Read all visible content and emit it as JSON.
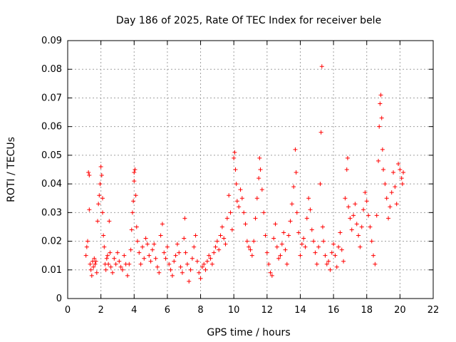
{
  "chart_data": {
    "type": "scatter",
    "title": "Day 186 of 2025, Rate Of TEC Index for receiver bele",
    "xlabel": "GPS time / hours",
    "ylabel": "ROTI / TECUs",
    "xlim": [
      0,
      22
    ],
    "ylim": [
      0,
      0.09
    ],
    "xticks": [
      "0",
      "2",
      "4",
      "6",
      "8",
      "10",
      "12",
      "14",
      "16",
      "18",
      "20",
      "22"
    ],
    "yticks": [
      "0",
      "0.01",
      "0.02",
      "0.03",
      "0.04",
      "0.05",
      "0.06",
      "0.07",
      "0.08",
      "0.09"
    ],
    "grid": true,
    "marker": "plus",
    "color": "#ff0000",
    "series": [
      {
        "points": [
          [
            1.1,
            0.015
          ],
          [
            1.15,
            0.018
          ],
          [
            1.2,
            0.02
          ],
          [
            1.25,
            0.044
          ],
          [
            1.3,
            0.043
          ],
          [
            1.3,
            0.031
          ],
          [
            1.35,
            0.012
          ],
          [
            1.4,
            0.01
          ],
          [
            1.45,
            0.008
          ],
          [
            1.5,
            0.013
          ],
          [
            1.55,
            0.011
          ],
          [
            1.6,
            0.014
          ],
          [
            1.65,
            0.012
          ],
          [
            1.7,
            0.013
          ],
          [
            1.75,
            0.009
          ],
          [
            1.8,
            0.027
          ],
          [
            1.85,
            0.033
          ],
          [
            1.9,
            0.036
          ],
          [
            1.95,
            0.04
          ],
          [
            2.0,
            0.046
          ],
          [
            2.05,
            0.043
          ],
          [
            2.1,
            0.035
          ],
          [
            2.1,
            0.03
          ],
          [
            2.15,
            0.022
          ],
          [
            2.2,
            0.018
          ],
          [
            2.25,
            0.012
          ],
          [
            2.3,
            0.01
          ],
          [
            2.35,
            0.014
          ],
          [
            2.4,
            0.015
          ],
          [
            2.45,
            0.012
          ],
          [
            2.5,
            0.027
          ],
          [
            2.55,
            0.016
          ],
          [
            2.6,
            0.011
          ],
          [
            2.7,
            0.009
          ],
          [
            2.8,
            0.014
          ],
          [
            2.9,
            0.012
          ],
          [
            3.0,
            0.016
          ],
          [
            3.1,
            0.013
          ],
          [
            3.2,
            0.011
          ],
          [
            3.3,
            0.01
          ],
          [
            3.4,
            0.015
          ],
          [
            3.5,
            0.012
          ],
          [
            3.6,
            0.008
          ],
          [
            3.7,
            0.012
          ],
          [
            3.8,
            0.017
          ],
          [
            3.85,
            0.024
          ],
          [
            3.9,
            0.03
          ],
          [
            3.95,
            0.034
          ],
          [
            4.0,
            0.041
          ],
          [
            4.0,
            0.044
          ],
          [
            4.05,
            0.045
          ],
          [
            4.1,
            0.036
          ],
          [
            4.15,
            0.025
          ],
          [
            4.2,
            0.02
          ],
          [
            4.3,
            0.016
          ],
          [
            4.4,
            0.012
          ],
          [
            4.5,
            0.018
          ],
          [
            4.6,
            0.014
          ],
          [
            4.7,
            0.021
          ],
          [
            4.8,
            0.019
          ],
          [
            4.9,
            0.015
          ],
          [
            5.0,
            0.013
          ],
          [
            5.1,
            0.017
          ],
          [
            5.2,
            0.019
          ],
          [
            5.3,
            0.014
          ],
          [
            5.4,
            0.011
          ],
          [
            5.5,
            0.009
          ],
          [
            5.6,
            0.022
          ],
          [
            5.7,
            0.026
          ],
          [
            5.8,
            0.016
          ],
          [
            5.9,
            0.014
          ],
          [
            6.0,
            0.018
          ],
          [
            6.1,
            0.012
          ],
          [
            6.2,
            0.01
          ],
          [
            6.3,
            0.008
          ],
          [
            6.4,
            0.013
          ],
          [
            6.5,
            0.015
          ],
          [
            6.6,
            0.019
          ],
          [
            6.7,
            0.016
          ],
          [
            6.8,
            0.011
          ],
          [
            6.9,
            0.009
          ],
          [
            7.0,
            0.021
          ],
          [
            7.05,
            0.028
          ],
          [
            7.1,
            0.016
          ],
          [
            7.2,
            0.012
          ],
          [
            7.3,
            0.006
          ],
          [
            7.4,
            0.01
          ],
          [
            7.5,
            0.014
          ],
          [
            7.6,
            0.018
          ],
          [
            7.7,
            0.022
          ],
          [
            7.8,
            0.013
          ],
          [
            7.9,
            0.009
          ],
          [
            8.0,
            0.007
          ],
          [
            8.1,
            0.011
          ],
          [
            8.2,
            0.012
          ],
          [
            8.3,
            0.01
          ],
          [
            8.4,
            0.013
          ],
          [
            8.5,
            0.015
          ],
          [
            8.6,
            0.014
          ],
          [
            8.7,
            0.012
          ],
          [
            8.8,
            0.016
          ],
          [
            8.9,
            0.018
          ],
          [
            9.0,
            0.02
          ],
          [
            9.1,
            0.017
          ],
          [
            9.2,
            0.022
          ],
          [
            9.3,
            0.025
          ],
          [
            9.4,
            0.021
          ],
          [
            9.5,
            0.019
          ],
          [
            9.6,
            0.028
          ],
          [
            9.7,
            0.036
          ],
          [
            9.8,
            0.03
          ],
          [
            9.9,
            0.024
          ],
          [
            10.0,
            0.049
          ],
          [
            10.05,
            0.051
          ],
          [
            10.1,
            0.045
          ],
          [
            10.15,
            0.04
          ],
          [
            10.2,
            0.034
          ],
          [
            10.3,
            0.032
          ],
          [
            10.4,
            0.038
          ],
          [
            10.5,
            0.035
          ],
          [
            10.6,
            0.03
          ],
          [
            10.7,
            0.026
          ],
          [
            10.8,
            0.02
          ],
          [
            10.9,
            0.018
          ],
          [
            11.0,
            0.017
          ],
          [
            11.1,
            0.015
          ],
          [
            11.2,
            0.02
          ],
          [
            11.3,
            0.028
          ],
          [
            11.4,
            0.035
          ],
          [
            11.5,
            0.042
          ],
          [
            11.55,
            0.049
          ],
          [
            11.6,
            0.045
          ],
          [
            11.7,
            0.038
          ],
          [
            11.8,
            0.03
          ],
          [
            11.9,
            0.022
          ],
          [
            12.0,
            0.016
          ],
          [
            12.1,
            0.012
          ],
          [
            12.2,
            0.009
          ],
          [
            12.3,
            0.008
          ],
          [
            12.4,
            0.021
          ],
          [
            12.5,
            0.026
          ],
          [
            12.6,
            0.018
          ],
          [
            12.7,
            0.014
          ],
          [
            12.8,
            0.015
          ],
          [
            12.9,
            0.019
          ],
          [
            13.0,
            0.023
          ],
          [
            13.1,
            0.017
          ],
          [
            13.2,
            0.012
          ],
          [
            13.3,
            0.022
          ],
          [
            13.4,
            0.027
          ],
          [
            13.5,
            0.033
          ],
          [
            13.6,
            0.039
          ],
          [
            13.7,
            0.052
          ],
          [
            13.75,
            0.044
          ],
          [
            13.8,
            0.03
          ],
          [
            13.9,
            0.023
          ],
          [
            14.0,
            0.015
          ],
          [
            14.1,
            0.019
          ],
          [
            14.2,
            0.021
          ],
          [
            14.3,
            0.018
          ],
          [
            14.4,
            0.028
          ],
          [
            14.5,
            0.035
          ],
          [
            14.6,
            0.031
          ],
          [
            14.7,
            0.024
          ],
          [
            14.8,
            0.02
          ],
          [
            14.9,
            0.016
          ],
          [
            15.0,
            0.012
          ],
          [
            15.1,
            0.018
          ],
          [
            15.2,
            0.04
          ],
          [
            15.25,
            0.058
          ],
          [
            15.3,
            0.081
          ],
          [
            15.35,
            0.025
          ],
          [
            15.4,
            0.02
          ],
          [
            15.5,
            0.015
          ],
          [
            15.6,
            0.012
          ],
          [
            15.7,
            0.013
          ],
          [
            15.8,
            0.01
          ],
          [
            15.9,
            0.016
          ],
          [
            16.0,
            0.019
          ],
          [
            16.1,
            0.015
          ],
          [
            16.2,
            0.011
          ],
          [
            16.3,
            0.018
          ],
          [
            16.4,
            0.023
          ],
          [
            16.5,
            0.017
          ],
          [
            16.6,
            0.013
          ],
          [
            16.7,
            0.035
          ],
          [
            16.8,
            0.045
          ],
          [
            16.85,
            0.049
          ],
          [
            16.9,
            0.032
          ],
          [
            17.0,
            0.028
          ],
          [
            17.1,
            0.024
          ],
          [
            17.2,
            0.029
          ],
          [
            17.3,
            0.033
          ],
          [
            17.4,
            0.026
          ],
          [
            17.5,
            0.022
          ],
          [
            17.6,
            0.018
          ],
          [
            17.7,
            0.025
          ],
          [
            17.8,
            0.031
          ],
          [
            17.9,
            0.037
          ],
          [
            18.0,
            0.034
          ],
          [
            18.1,
            0.029
          ],
          [
            18.2,
            0.025
          ],
          [
            18.3,
            0.02
          ],
          [
            18.4,
            0.015
          ],
          [
            18.5,
            0.012
          ],
          [
            18.6,
            0.029
          ],
          [
            18.7,
            0.048
          ],
          [
            18.75,
            0.06
          ],
          [
            18.8,
            0.068
          ],
          [
            18.85,
            0.071
          ],
          [
            18.9,
            0.063
          ],
          [
            18.95,
            0.052
          ],
          [
            19.0,
            0.045
          ],
          [
            19.1,
            0.04
          ],
          [
            19.2,
            0.035
          ],
          [
            19.3,
            0.028
          ],
          [
            19.4,
            0.032
          ],
          [
            19.5,
            0.037
          ],
          [
            19.6,
            0.044
          ],
          [
            19.7,
            0.039
          ],
          [
            19.8,
            0.033
          ],
          [
            19.9,
            0.047
          ],
          [
            20.0,
            0.045
          ],
          [
            20.1,
            0.042
          ],
          [
            20.15,
            0.04
          ],
          [
            20.2,
            0.044
          ]
        ]
      }
    ]
  }
}
